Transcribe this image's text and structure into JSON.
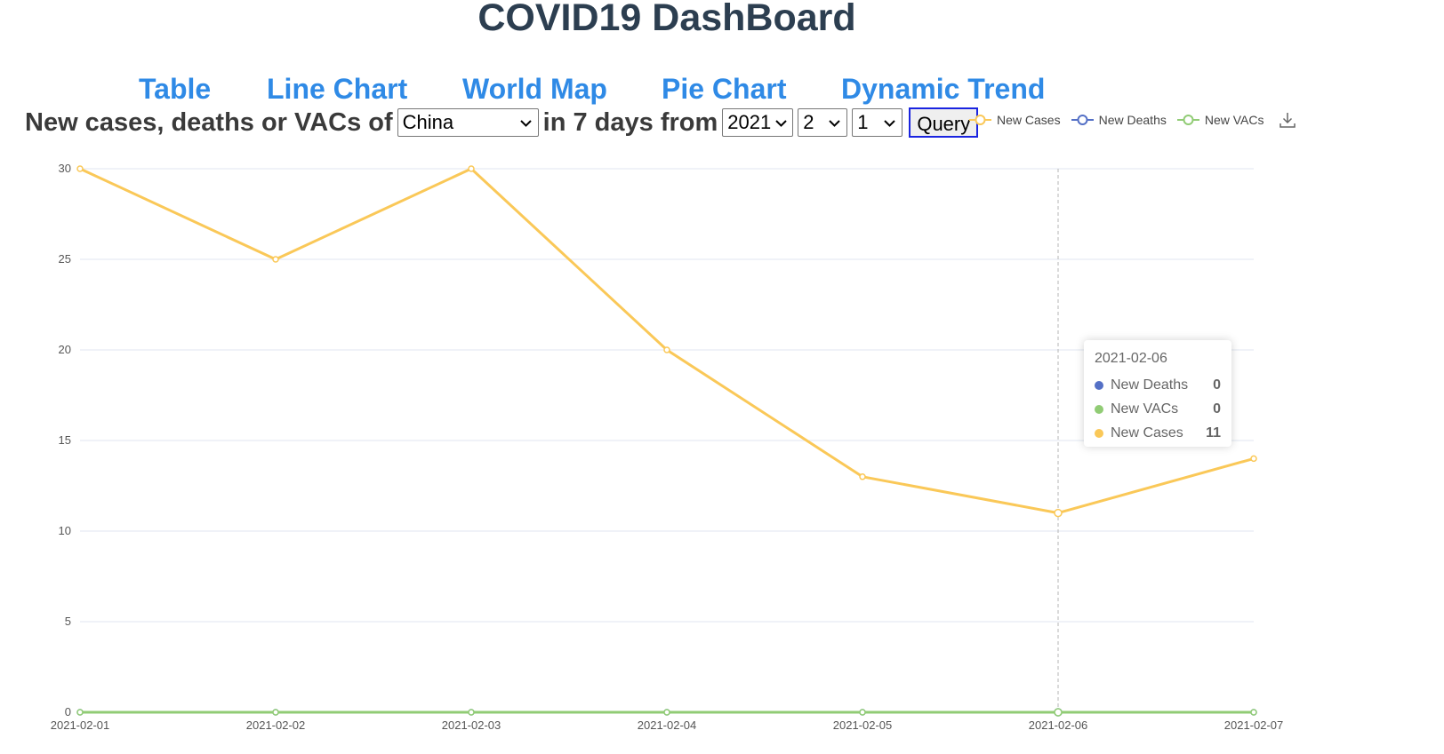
{
  "header": {
    "title": "COVID19 DashBoard"
  },
  "nav": [
    {
      "label": "Table",
      "name": "nav-table"
    },
    {
      "label": "Line Chart",
      "name": "nav-line-chart"
    },
    {
      "label": "World Map",
      "name": "nav-world-map"
    },
    {
      "label": "Pie Chart",
      "name": "nav-pie-chart"
    },
    {
      "label": "Dynamic Trend",
      "name": "nav-dynamic-trend"
    }
  ],
  "query": {
    "prefix": "New cases, deaths or VACs of",
    "country": "China",
    "middle": "in 7 days from",
    "year": "2021",
    "month": "2",
    "day": "1",
    "button_label": "Query"
  },
  "legend": [
    {
      "label": "New Cases",
      "color": "#fac858"
    },
    {
      "label": "New Deaths",
      "color": "#5470c6"
    },
    {
      "label": "New VACs",
      "color": "#91cc75"
    }
  ],
  "tooltip": {
    "date": "2021-02-06",
    "rows": [
      {
        "name": "New Deaths",
        "value": "0",
        "color": "#5470c6"
      },
      {
        "name": "New VACs",
        "value": "0",
        "color": "#91cc75"
      },
      {
        "name": "New Cases",
        "value": "11",
        "color": "#fac858"
      }
    ]
  },
  "chart_data": {
    "type": "line",
    "x": [
      "2021-02-01",
      "2021-02-02",
      "2021-02-03",
      "2021-02-04",
      "2021-02-05",
      "2021-02-06",
      "2021-02-07"
    ],
    "series": [
      {
        "name": "New Cases",
        "color": "#fac858",
        "values": [
          30,
          25,
          30,
          20,
          13,
          11,
          14
        ]
      },
      {
        "name": "New Deaths",
        "color": "#5470c6",
        "values": [
          0,
          0,
          0,
          0,
          0,
          0,
          0
        ]
      },
      {
        "name": "New VACs",
        "color": "#91cc75",
        "values": [
          0,
          0,
          0,
          0,
          0,
          0,
          0
        ]
      }
    ],
    "yticks": [
      0,
      5,
      10,
      15,
      20,
      25,
      30
    ],
    "ylim": [
      0,
      30
    ],
    "highlight_x": "2021-02-06",
    "grid": true,
    "legend_position": "top-right"
  }
}
